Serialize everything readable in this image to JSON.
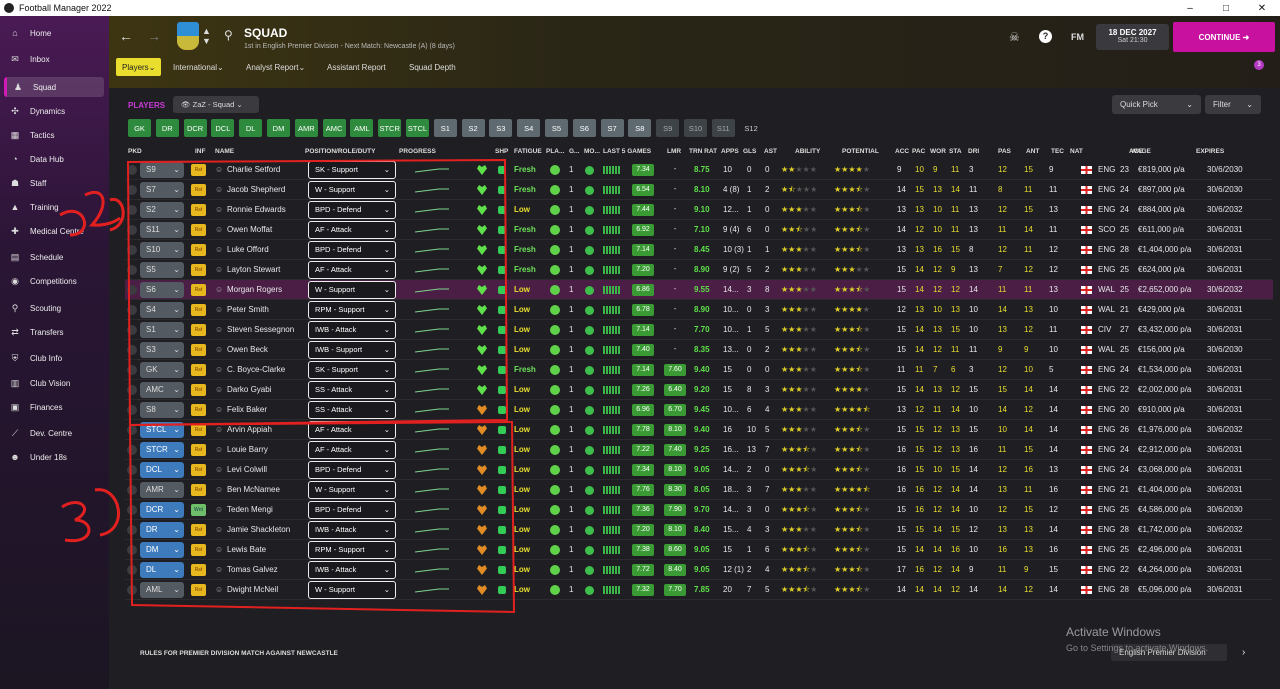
{
  "window": {
    "title": "Football Manager 2022"
  },
  "sidebar": {
    "items": [
      {
        "label": "Home",
        "icon": "home-icon"
      },
      {
        "label": "Inbox",
        "icon": "inbox-icon"
      },
      {
        "label": "Squad",
        "icon": "squad-icon",
        "active": true
      },
      {
        "label": "Dynamics",
        "icon": "dynamics-icon"
      },
      {
        "label": "Tactics",
        "icon": "tactics-icon"
      },
      {
        "label": "Data Hub",
        "icon": "datahub-icon"
      },
      {
        "label": "Staff",
        "icon": "staff-icon"
      },
      {
        "label": "Training",
        "icon": "training-icon"
      },
      {
        "label": "Medical Centre",
        "icon": "medical-icon"
      },
      {
        "label": "Schedule",
        "icon": "schedule-icon"
      },
      {
        "label": "Competitions",
        "icon": "competitions-icon"
      },
      {
        "label": "Scouting",
        "icon": "scouting-icon"
      },
      {
        "label": "Transfers",
        "icon": "transfers-icon"
      },
      {
        "label": "Club Info",
        "icon": "clubinfo-icon"
      },
      {
        "label": "Club Vision",
        "icon": "clubvision-icon"
      },
      {
        "label": "Finances",
        "icon": "finances-icon"
      },
      {
        "label": "Dev. Centre",
        "icon": "devcentre-icon"
      },
      {
        "label": "Under 18s",
        "icon": "under18-icon"
      }
    ]
  },
  "header": {
    "title": "SQUAD",
    "subtitle": "1st in English Premier Division - Next Match: Newcastle (A) (8 days)",
    "tabs": [
      "Players",
      "International",
      "Analyst Report",
      "Assistant Report",
      "Squad Depth"
    ],
    "date": "18 DEC 2027",
    "time": "Sat 21:30",
    "continue": "CONTINUE",
    "fm": "FM",
    "notifications": "3"
  },
  "toolbar": {
    "players_label": "PLAYERS",
    "view": "ZaZ - Squad",
    "quick_pick": "Quick Pick",
    "filter": "Filter",
    "positions": [
      "GK",
      "DR",
      "DCR",
      "DCL",
      "DL",
      "DM",
      "AMR",
      "AMC",
      "AML",
      "STCR",
      "STCL",
      "S1",
      "S2",
      "S3",
      "S4",
      "S5",
      "S6",
      "S7",
      "S8",
      "S9",
      "S10",
      "S11",
      "S12"
    ]
  },
  "columns": [
    "PKD",
    "INF",
    "NAME",
    "POSITION/ROLE/DUTY",
    "PROGRESS",
    "",
    "SHP",
    "FATIGUE",
    "PLA...",
    "G...",
    "MO...",
    "LAST 5 GAMES",
    "LMR",
    "TRN RAT",
    "APPS",
    "GLS",
    "AST",
    "ABILITY",
    "POTENTIAL",
    "ACC",
    "PAC",
    "WOR",
    "STA",
    "DRI",
    "PAS",
    "ANT",
    "TEC",
    "NAT",
    "AGE",
    "WAGE",
    "EXPIRES"
  ],
  "players": [
    {
      "sq": "S9",
      "inf": "Rst",
      "name": "Charlie Setford",
      "role": "SK - Support",
      "fat": "Fresh",
      "g": "1",
      "l5": "7.34",
      "lmr": "-",
      "trn": "8.75",
      "apps": "10",
      "gls": "0",
      "ast": "0",
      "ab": 2,
      "pot": 4,
      "acc": "9",
      "pac": "10",
      "wor": "9",
      "sta": "11",
      "dri": "3",
      "pas": "12",
      "ant": "15",
      "tec": "9",
      "nat": "ENG",
      "age": "23",
      "wage": "€819,000 p/a",
      "exp": "30/6/2030"
    },
    {
      "sq": "S7",
      "inf": "Rst",
      "name": "Jacob Shepherd",
      "role": "W - Support",
      "fat": "Fresh",
      "g": "1",
      "l5": "6.54",
      "lmr": "-",
      "trn": "8.10",
      "apps": "4 (8)",
      "gls": "1",
      "ast": "2",
      "ab": 1.5,
      "pot": 3.5,
      "acc": "14",
      "pac": "15",
      "wor": "13",
      "sta": "14",
      "dri": "11",
      "pas": "8",
      "ant": "11",
      "tec": "11",
      "nat": "ENG",
      "age": "24",
      "wage": "€897,000 p/a",
      "exp": "30/6/2030"
    },
    {
      "sq": "S2",
      "inf": "Rst",
      "name": "Ronnie Edwards",
      "role": "BPD - Defend",
      "fat": "Low",
      "g": "1",
      "l5": "7.44",
      "lmr": "-",
      "trn": "9.10",
      "apps": "12...",
      "gls": "1",
      "ast": "0",
      "ab": 3,
      "pot": 3.5,
      "acc": "13",
      "pac": "13",
      "wor": "10",
      "sta": "11",
      "dri": "13",
      "pas": "12",
      "ant": "15",
      "tec": "13",
      "nat": "ENG",
      "age": "24",
      "wage": "€884,000 p/a",
      "exp": "30/6/2032"
    },
    {
      "sq": "S11",
      "inf": "Rst",
      "name": "Owen Moffat",
      "role": "AF - Attack",
      "fat": "Fresh",
      "g": "1",
      "l5": "6.92",
      "lmr": "-",
      "trn": "7.10",
      "apps": "9 (4)",
      "gls": "6",
      "ast": "0",
      "ab": 2.5,
      "pot": 3.5,
      "acc": "14",
      "pac": "12",
      "wor": "10",
      "sta": "11",
      "dri": "13",
      "pas": "11",
      "ant": "14",
      "tec": "11",
      "nat": "SCO",
      "age": "25",
      "wage": "€611,000 p/a",
      "exp": "30/6/2031"
    },
    {
      "sq": "S10",
      "inf": "Rst",
      "name": "Luke Offord",
      "role": "BPD - Defend",
      "fat": "Fresh",
      "g": "1",
      "l5": "7.14",
      "lmr": "-",
      "trn": "8.45",
      "apps": "10 (3)",
      "gls": "1",
      "ast": "1",
      "ab": 3,
      "pot": 3.5,
      "acc": "13",
      "pac": "13",
      "wor": "16",
      "sta": "15",
      "dri": "8",
      "pas": "12",
      "ant": "11",
      "tec": "12",
      "nat": "ENG",
      "age": "28",
      "wage": "€1,404,000 p/a",
      "exp": "30/6/2031"
    },
    {
      "sq": "S5",
      "inf": "Rst",
      "name": "Layton Stewart",
      "role": "AF - Attack",
      "fat": "Fresh",
      "g": "1",
      "l5": "7.20",
      "lmr": "-",
      "trn": "8.90",
      "apps": "9 (2)",
      "gls": "5",
      "ast": "2",
      "ab": 3,
      "pot": 3,
      "acc": "15",
      "pac": "14",
      "wor": "12",
      "sta": "9",
      "dri": "13",
      "pas": "7",
      "ant": "12",
      "tec": "12",
      "nat": "ENG",
      "age": "25",
      "wage": "€624,000 p/a",
      "exp": "30/6/2031"
    },
    {
      "sq": "S6",
      "inf": "Rst",
      "name": "Morgan Rogers",
      "role": "W - Support",
      "fat": "Low",
      "g": "1",
      "l5": "6.86",
      "lmr": "-",
      "trn": "9.55",
      "apps": "14...",
      "gls": "3",
      "ast": "8",
      "ab": 3,
      "pot": 3.5,
      "acc": "15",
      "pac": "14",
      "wor": "12",
      "sta": "12",
      "dri": "14",
      "pas": "11",
      "ant": "11",
      "tec": "13",
      "nat": "WAL",
      "age": "25",
      "wage": "€2,652,000 p/a",
      "exp": "30/6/2032",
      "sel": true
    },
    {
      "sq": "S4",
      "inf": "Rst",
      "name": "Peter Smith",
      "role": "RPM - Support",
      "fat": "Low",
      "g": "1",
      "l5": "6.78",
      "lmr": "-",
      "trn": "8.90",
      "apps": "10...",
      "gls": "0",
      "ast": "3",
      "ab": 3,
      "pot": 4,
      "acc": "12",
      "pac": "13",
      "wor": "10",
      "sta": "13",
      "dri": "10",
      "pas": "14",
      "ant": "13",
      "tec": "10",
      "nat": "WAL",
      "age": "21",
      "wage": "€429,000 p/a",
      "exp": "30/6/2031"
    },
    {
      "sq": "S1",
      "inf": "Rst",
      "name": "Steven Sessegnon",
      "role": "IWB - Attack",
      "fat": "Low",
      "g": "1",
      "l5": "7.14",
      "lmr": "-",
      "trn": "7.70",
      "apps": "10...",
      "gls": "1",
      "ast": "5",
      "ab": 3,
      "pot": 3.5,
      "acc": "15",
      "pac": "14",
      "wor": "13",
      "sta": "15",
      "dri": "10",
      "pas": "13",
      "ant": "12",
      "tec": "11",
      "nat": "CIV",
      "age": "27",
      "wage": "€3,432,000 p/a",
      "exp": "30/6/2031"
    },
    {
      "sq": "S3",
      "inf": "Rst",
      "name": "Owen Beck",
      "role": "IWB - Support",
      "fat": "Low",
      "g": "1",
      "l5": "7.40",
      "lmr": "-",
      "trn": "8.35",
      "apps": "13...",
      "gls": "0",
      "ast": "2",
      "ab": 3,
      "pot": 3.5,
      "acc": "15",
      "pac": "14",
      "wor": "12",
      "sta": "11",
      "dri": "11",
      "pas": "9",
      "ant": "9",
      "tec": "10",
      "nat": "WAL",
      "age": "25",
      "wage": "€156,000 p/a",
      "exp": "30/6/2030"
    },
    {
      "sq": "GK",
      "inf": "Rst",
      "name": "C. Boyce-Clarke",
      "role": "SK - Support",
      "fat": "Fresh",
      "g": "1",
      "l5": "7.14",
      "lmr": "7.60",
      "trn": "9.40",
      "apps": "15",
      "gls": "0",
      "ast": "0",
      "ab": 3,
      "pot": 3.5,
      "acc": "11",
      "pac": "11",
      "wor": "7",
      "sta": "6",
      "dri": "3",
      "pas": "12",
      "ant": "10",
      "tec": "5",
      "nat": "ENG",
      "age": "24",
      "wage": "€1,534,000 p/a",
      "exp": "30/6/2031"
    },
    {
      "sq": "AMC",
      "inf": "Rst",
      "name": "Darko Gyabi",
      "role": "SS - Attack",
      "fat": "Low",
      "g": "1",
      "l5": "7.26",
      "lmr": "6.40",
      "trn": "9.20",
      "apps": "15",
      "gls": "8",
      "ast": "3",
      "ab": 3,
      "pot": 4,
      "acc": "15",
      "pac": "14",
      "wor": "13",
      "sta": "12",
      "dri": "15",
      "pas": "15",
      "ant": "14",
      "tec": "14",
      "nat": "ENG",
      "age": "22",
      "wage": "€2,002,000 p/a",
      "exp": "30/6/2031"
    },
    {
      "sq": "S8",
      "inf": "Rst",
      "name": "Felix Baker",
      "role": "SS - Attack",
      "fat": "Low",
      "g": "1",
      "l5": "6.96",
      "lmr": "6.70",
      "trn": "9.45",
      "apps": "10...",
      "gls": "6",
      "ast": "4",
      "ab": 3,
      "pot": 4.5,
      "acc": "13",
      "pac": "12",
      "wor": "11",
      "sta": "14",
      "dri": "10",
      "pas": "14",
      "ant": "12",
      "tec": "14",
      "nat": "ENG",
      "age": "20",
      "wage": "€910,000 p/a",
      "exp": "30/6/2031",
      "orange": true
    },
    {
      "sq": "STCL",
      "inf": "Rst",
      "name": "Arvin Appiah",
      "role": "AF - Attack",
      "fat": "Low",
      "g": "1",
      "l5": "7.78",
      "lmr": "8.10",
      "trn": "9.40",
      "apps": "16",
      "gls": "10",
      "ast": "5",
      "ab": 3,
      "pot": 3.5,
      "acc": "15",
      "pac": "15",
      "wor": "12",
      "sta": "13",
      "dri": "15",
      "pas": "10",
      "ant": "14",
      "tec": "14",
      "nat": "ENG",
      "age": "26",
      "wage": "€1,976,000 p/a",
      "exp": "30/6/2032",
      "blue": true,
      "orange": true
    },
    {
      "sq": "STCR",
      "inf": "Rst",
      "name": "Louie Barry",
      "role": "AF - Attack",
      "fat": "Low",
      "g": "1",
      "l5": "7.22",
      "lmr": "7.40",
      "trn": "9.25",
      "apps": "16...",
      "gls": "13",
      "ast": "7",
      "ab": 3.5,
      "pot": 3.5,
      "acc": "16",
      "pac": "15",
      "wor": "12",
      "sta": "13",
      "dri": "16",
      "pas": "11",
      "ant": "15",
      "tec": "14",
      "nat": "ENG",
      "age": "24",
      "wage": "€2,912,000 p/a",
      "exp": "30/6/2031",
      "blue": true,
      "orange": true
    },
    {
      "sq": "DCL",
      "inf": "Rst",
      "name": "Levi Colwill",
      "role": "BPD - Defend",
      "fat": "Low",
      "g": "1",
      "l5": "7.34",
      "lmr": "8.10",
      "trn": "9.05",
      "apps": "14...",
      "gls": "2",
      "ast": "0",
      "ab": 3.5,
      "pot": 3.5,
      "acc": "16",
      "pac": "15",
      "wor": "10",
      "sta": "15",
      "dri": "14",
      "pas": "12",
      "ant": "16",
      "tec": "13",
      "nat": "ENG",
      "age": "24",
      "wage": "€3,068,000 p/a",
      "exp": "30/6/2031",
      "blue": true,
      "orange": true
    },
    {
      "sq": "AMR",
      "inf": "Rst",
      "name": "Ben McNamee",
      "role": "W - Support",
      "fat": "Low",
      "g": "1",
      "l5": "7.76",
      "lmr": "8.30",
      "trn": "8.05",
      "apps": "18...",
      "gls": "3",
      "ast": "7",
      "ab": 3,
      "pot": 4.5,
      "acc": "16",
      "pac": "16",
      "wor": "12",
      "sta": "14",
      "dri": "14",
      "pas": "13",
      "ant": "11",
      "tec": "16",
      "nat": "ENG",
      "age": "21",
      "wage": "€1,404,000 p/a",
      "exp": "30/6/2031",
      "orange": true
    },
    {
      "sq": "DCR",
      "inf": "Wnt",
      "name": "Teden Mengi",
      "role": "BPD - Defend",
      "fat": "Low",
      "g": "1",
      "l5": "7.36",
      "lmr": "7.90",
      "trn": "9.70",
      "apps": "14...",
      "gls": "3",
      "ast": "0",
      "ab": 3.5,
      "pot": 3.5,
      "acc": "15",
      "pac": "16",
      "wor": "12",
      "sta": "14",
      "dri": "10",
      "pas": "12",
      "ant": "15",
      "tec": "12",
      "nat": "ENG",
      "age": "25",
      "wage": "€4,586,000 p/a",
      "exp": "30/6/2030",
      "blue": true,
      "orange": true,
      "wnt": true
    },
    {
      "sq": "DR",
      "inf": "Rst",
      "name": "Jamie Shackleton",
      "role": "IWB - Attack",
      "fat": "Low",
      "g": "1",
      "l5": "7.20",
      "lmr": "8.10",
      "trn": "8.40",
      "apps": "15...",
      "gls": "4",
      "ast": "3",
      "ab": 3,
      "pot": 3.5,
      "acc": "15",
      "pac": "15",
      "wor": "14",
      "sta": "15",
      "dri": "12",
      "pas": "13",
      "ant": "13",
      "tec": "14",
      "nat": "ENG",
      "age": "28",
      "wage": "€1,742,000 p/a",
      "exp": "30/6/2032",
      "blue": true,
      "orange": true
    },
    {
      "sq": "DM",
      "inf": "Rst",
      "name": "Lewis Bate",
      "role": "RPM - Support",
      "fat": "Low",
      "g": "1",
      "l5": "7.38",
      "lmr": "8.60",
      "trn": "9.05",
      "apps": "15",
      "gls": "1",
      "ast": "6",
      "ab": 3.5,
      "pot": 3.5,
      "acc": "15",
      "pac": "14",
      "wor": "14",
      "sta": "16",
      "dri": "10",
      "pas": "16",
      "ant": "13",
      "tec": "16",
      "nat": "ENG",
      "age": "25",
      "wage": "€2,496,000 p/a",
      "exp": "30/6/2031",
      "blue": true,
      "orange": true
    },
    {
      "sq": "DL",
      "inf": "Rst",
      "name": "Tomas Galvez",
      "role": "IWB - Attack",
      "fat": "Low",
      "g": "1",
      "l5": "7.72",
      "lmr": "8.40",
      "trn": "9.05",
      "apps": "12 (1)",
      "gls": "2",
      "ast": "4",
      "ab": 3.5,
      "pot": 3.5,
      "acc": "17",
      "pac": "16",
      "wor": "12",
      "sta": "14",
      "dri": "9",
      "pas": "11",
      "ant": "9",
      "tec": "15",
      "nat": "ENG",
      "age": "22",
      "wage": "€4,264,000 p/a",
      "exp": "30/6/2031",
      "blue": true,
      "orange": true
    },
    {
      "sq": "AML",
      "inf": "Rst",
      "name": "Dwight McNeil",
      "role": "W - Support",
      "fat": "Low",
      "g": "1",
      "l5": "7.32",
      "lmr": "7.70",
      "trn": "7.85",
      "apps": "20",
      "gls": "7",
      "ast": "5",
      "ab": 3.5,
      "pot": 3.5,
      "acc": "14",
      "pac": "14",
      "wor": "14",
      "sta": "12",
      "dri": "14",
      "pas": "14",
      "ant": "12",
      "tec": "14",
      "nat": "ENG",
      "age": "28",
      "wage": "€5,096,000 p/a",
      "exp": "30/6/2031",
      "orange": true
    }
  ],
  "footer": {
    "rules": "RULES FOR PREMIER DIVISION MATCH AGAINST NEWCASTLE",
    "competition": "English Premier Division",
    "watermark1": "Activate Windows",
    "watermark2": "Go to Settings to activate Windows."
  }
}
